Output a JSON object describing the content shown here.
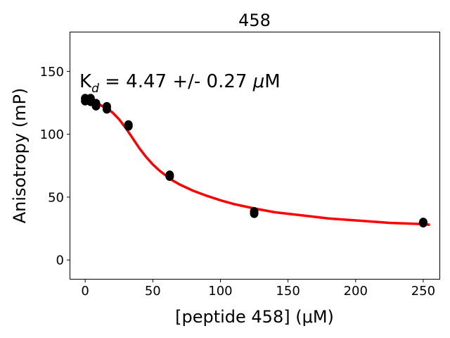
{
  "chart_data": {
    "type": "scatter",
    "title": "458",
    "xlabel": "[peptide 458] (μM)",
    "ylabel": "Anisotropy (mP)",
    "xlim": [
      -11,
      262
    ],
    "ylim": [
      -15,
      181
    ],
    "xticks": [
      0,
      50,
      100,
      150,
      200,
      250
    ],
    "yticks": [
      0,
      50,
      100,
      150
    ],
    "annotation": {
      "prefix": "K",
      "subscript": "d",
      "suffix": " = 4.47 +/- 0.27 ",
      "mu": "μ",
      "unit": "M"
    },
    "grid": false,
    "legend": "none",
    "series": [
      {
        "kind": "points",
        "color": "#000000",
        "x": [
          0,
          0,
          4,
          4,
          8,
          8,
          16,
          16,
          32,
          32,
          62.5,
          62.5,
          125,
          125,
          250,
          250
        ],
        "y": [
          126.5,
          128.5,
          126,
          128.5,
          122.5,
          124.5,
          120,
          122,
          106.5,
          107.5,
          66.5,
          67.5,
          37,
          38.5,
          29.5,
          30
        ]
      },
      {
        "kind": "fit-line",
        "color": "#ff0000",
        "x": [
          0,
          5,
          10,
          15,
          20,
          25,
          30,
          35,
          40,
          45,
          50,
          55,
          60,
          65,
          70,
          80,
          90,
          100,
          110,
          125,
          140,
          160,
          180,
          200,
          225,
          250,
          255
        ],
        "y": [
          127,
          126,
          124,
          121,
          117.5,
          112,
          105,
          97,
          89,
          82,
          76,
          71,
          67,
          63,
          60,
          55,
          51,
          47.5,
          44.5,
          41,
          38,
          35.5,
          33,
          31.5,
          29.5,
          28.5,
          28
        ]
      }
    ]
  }
}
